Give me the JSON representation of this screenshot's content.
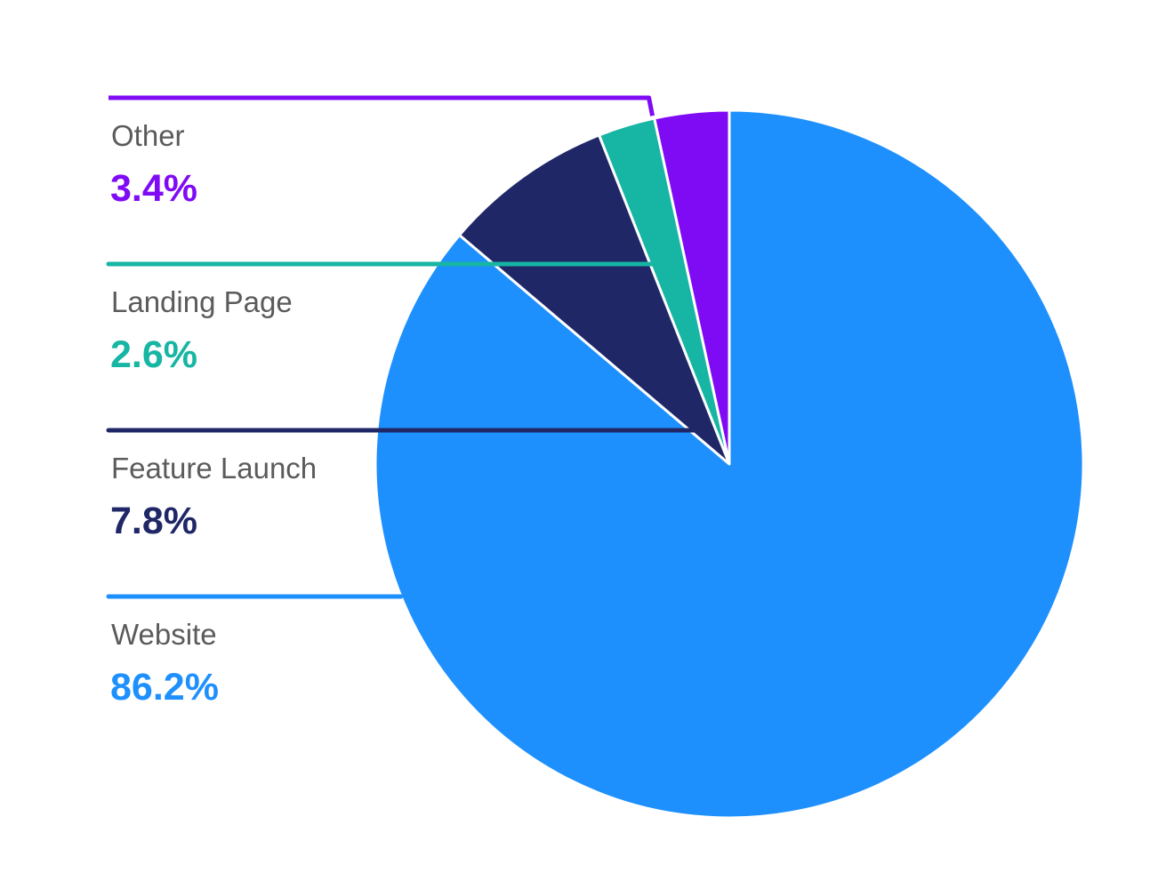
{
  "chart_data": {
    "type": "pie",
    "title": "",
    "start_angle": "top, counter-clockwise",
    "slices": [
      {
        "label": "Other",
        "value": 3.4,
        "value_label": "3.4%",
        "color": "#7f0bf5"
      },
      {
        "label": "Landing Page",
        "value": 2.6,
        "value_label": "2.6%",
        "color": "#17b5a3"
      },
      {
        "label": "Feature Launch",
        "value": 7.8,
        "value_label": "7.8%",
        "color": "#1f2767"
      },
      {
        "label": "Website",
        "value": 86.2,
        "value_label": "86.2%",
        "color": "#1e90fd"
      }
    ],
    "legend": "left, leader lines"
  }
}
